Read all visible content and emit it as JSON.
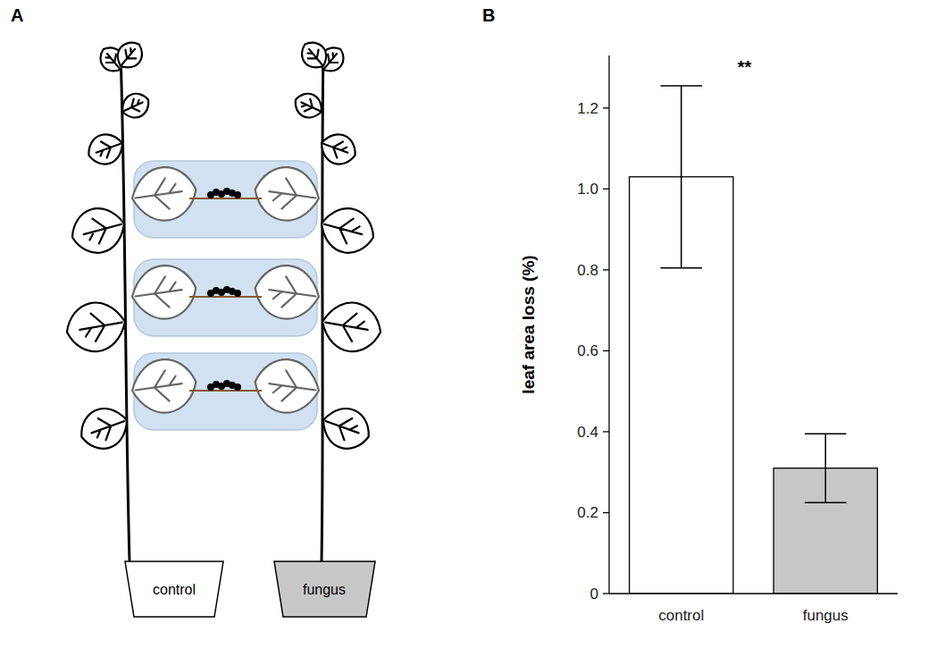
{
  "diagram": {
    "label": "A",
    "pots": [
      "control",
      "fungus"
    ]
  },
  "chart_data": {
    "type": "bar",
    "panel_label": "B",
    "y_label": "leaf area loss (%)",
    "categories": [
      "control",
      "fungus"
    ],
    "values": [
      1.03,
      0.31
    ],
    "error": [
      0.225,
      0.085
    ],
    "colors": [
      "#ffffff",
      "#c8c8c8"
    ],
    "annotation": "**",
    "ylim": [
      0,
      1.33
    ],
    "yticks": [
      0,
      0.2,
      0.4,
      0.6,
      0.8,
      {
        "value": 1,
        "label": "1.0"
      },
      1.2
    ],
    "grid": false
  }
}
